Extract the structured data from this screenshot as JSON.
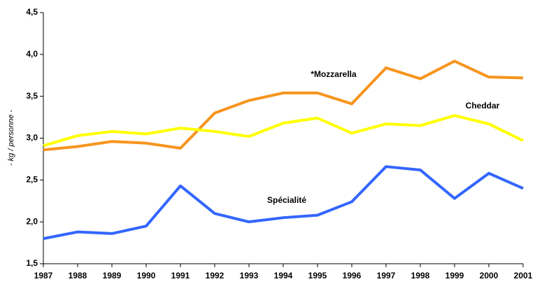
{
  "chart_data": {
    "type": "line",
    "y_label": "- kg / personne -",
    "x": [
      "1987",
      "1988",
      "1989",
      "1990",
      "1991",
      "1992",
      "1993",
      "1994",
      "1995",
      "1996",
      "1997",
      "1998",
      "1999",
      "2000",
      "2001"
    ],
    "series": [
      {
        "name": "*Mozzarella",
        "color": "#F7941D",
        "values": [
          2.86,
          2.9,
          2.96,
          2.94,
          2.88,
          3.3,
          3.45,
          3.54,
          3.54,
          3.41,
          3.84,
          3.71,
          3.92,
          3.73,
          3.72
        ]
      },
      {
        "name": "Cheddar",
        "color": "#FFFF00",
        "values": [
          2.91,
          3.03,
          3.08,
          3.05,
          3.12,
          3.08,
          3.02,
          3.18,
          3.24,
          3.06,
          3.17,
          3.15,
          3.27,
          3.17,
          2.97
        ]
      },
      {
        "name": "Spécialité",
        "color": "#3366FF",
        "values": [
          1.8,
          1.88,
          1.86,
          1.95,
          2.43,
          2.1,
          2.0,
          2.05,
          2.08,
          2.24,
          2.66,
          2.62,
          2.28,
          2.58,
          2.4
        ]
      }
    ],
    "ylim": [
      1.5,
      4.5
    ],
    "yticks": [
      {
        "value": 1.5,
        "label": "1,5"
      },
      {
        "value": 2.0,
        "label": "2,0"
      },
      {
        "value": 2.5,
        "label": "2,5"
      },
      {
        "value": 3.0,
        "label": "3,0"
      },
      {
        "value": 3.5,
        "label": "3,5"
      },
      {
        "value": 4.0,
        "label": "4,0"
      },
      {
        "value": 4.5,
        "label": "4,5"
      }
    ]
  }
}
